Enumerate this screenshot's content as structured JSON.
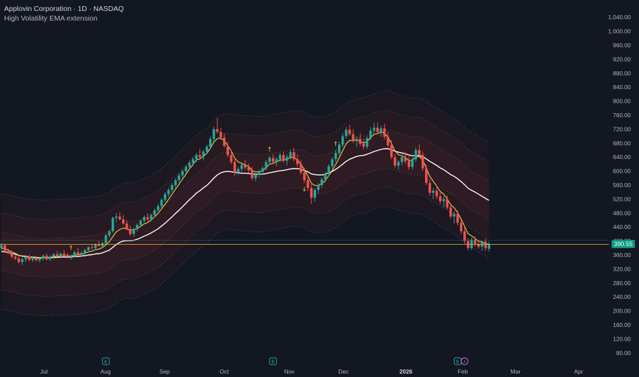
{
  "header": {
    "title": "Applovin Corporation · 1D · NASDAQ",
    "indicator": "High Volatility EMA extension"
  },
  "last_price": "390.55",
  "colors": {
    "background": "#131722",
    "up": "#26a69a",
    "down": "#ef5350",
    "fast_ema": "#f5d547",
    "slow_ema": "#ffffff",
    "band": "#8c2a2a",
    "price_line": "#f5b342",
    "earnings_badge": "#26a69a",
    "dividend_badge": "#c56bd8"
  },
  "chart_data": {
    "type": "candlestick",
    "x_axis_labels": [
      "Jul",
      "Aug",
      "Sep",
      "Oct",
      "Nov",
      "Dec",
      "2026",
      "Feb",
      "Mar",
      "Apr"
    ],
    "y_axis_labels": [
      "1,040.00",
      "1,000.00",
      "960.00",
      "920.00",
      "880.00",
      "840.00",
      "800.00",
      "760.00",
      "720.00",
      "680.00",
      "640.00",
      "600.00",
      "560.00",
      "520.00",
      "480.00",
      "440.00",
      "400.00",
      "360.00",
      "320.00",
      "280.00",
      "240.00",
      "200.00",
      "160.00",
      "120.00",
      "80.00"
    ],
    "ylim": [
      60,
      1060
    ],
    "grid": false,
    "candles": [
      {
        "o": 380,
        "h": 395,
        "l": 372,
        "c": 388
      },
      {
        "o": 388,
        "h": 392,
        "l": 368,
        "c": 372
      },
      {
        "o": 372,
        "h": 378,
        "l": 362,
        "c": 365
      },
      {
        "o": 365,
        "h": 370,
        "l": 350,
        "c": 355
      },
      {
        "o": 355,
        "h": 362,
        "l": 345,
        "c": 350
      },
      {
        "o": 350,
        "h": 358,
        "l": 336,
        "c": 340
      },
      {
        "o": 340,
        "h": 352,
        "l": 332,
        "c": 348
      },
      {
        "o": 348,
        "h": 360,
        "l": 340,
        "c": 355
      },
      {
        "o": 355,
        "h": 362,
        "l": 342,
        "c": 346
      },
      {
        "o": 346,
        "h": 356,
        "l": 340,
        "c": 352
      },
      {
        "o": 352,
        "h": 358,
        "l": 342,
        "c": 345
      },
      {
        "o": 345,
        "h": 355,
        "l": 338,
        "c": 350
      },
      {
        "o": 350,
        "h": 362,
        "l": 344,
        "c": 358
      },
      {
        "o": 358,
        "h": 364,
        "l": 344,
        "c": 348
      },
      {
        "o": 348,
        "h": 360,
        "l": 342,
        "c": 356
      },
      {
        "o": 356,
        "h": 366,
        "l": 348,
        "c": 362
      },
      {
        "o": 362,
        "h": 372,
        "l": 352,
        "c": 356
      },
      {
        "o": 356,
        "h": 368,
        "l": 350,
        "c": 364
      },
      {
        "o": 364,
        "h": 374,
        "l": 356,
        "c": 360
      },
      {
        "o": 360,
        "h": 366,
        "l": 350,
        "c": 355
      },
      {
        "o": 355,
        "h": 362,
        "l": 346,
        "c": 358
      },
      {
        "o": 358,
        "h": 372,
        "l": 352,
        "c": 368
      },
      {
        "o": 368,
        "h": 380,
        "l": 360,
        "c": 362
      },
      {
        "o": 362,
        "h": 372,
        "l": 355,
        "c": 366
      },
      {
        "o": 366,
        "h": 378,
        "l": 360,
        "c": 374
      },
      {
        "o": 374,
        "h": 386,
        "l": 368,
        "c": 382
      },
      {
        "o": 382,
        "h": 392,
        "l": 376,
        "c": 380
      },
      {
        "o": 380,
        "h": 394,
        "l": 374,
        "c": 390
      },
      {
        "o": 390,
        "h": 400,
        "l": 384,
        "c": 386
      },
      {
        "o": 386,
        "h": 398,
        "l": 380,
        "c": 394
      },
      {
        "o": 394,
        "h": 420,
        "l": 390,
        "c": 416
      },
      {
        "o": 416,
        "h": 432,
        "l": 410,
        "c": 428
      },
      {
        "o": 428,
        "h": 470,
        "l": 424,
        "c": 466
      },
      {
        "o": 466,
        "h": 480,
        "l": 452,
        "c": 470
      },
      {
        "o": 470,
        "h": 482,
        "l": 458,
        "c": 462
      },
      {
        "o": 462,
        "h": 474,
        "l": 446,
        "c": 450
      },
      {
        "o": 450,
        "h": 460,
        "l": 430,
        "c": 434
      },
      {
        "o": 434,
        "h": 444,
        "l": 414,
        "c": 420
      },
      {
        "o": 420,
        "h": 438,
        "l": 412,
        "c": 434
      },
      {
        "o": 434,
        "h": 450,
        "l": 428,
        "c": 446
      },
      {
        "o": 446,
        "h": 462,
        "l": 440,
        "c": 458
      },
      {
        "o": 458,
        "h": 474,
        "l": 452,
        "c": 468
      },
      {
        "o": 468,
        "h": 480,
        "l": 456,
        "c": 462
      },
      {
        "o": 462,
        "h": 478,
        "l": 456,
        "c": 474
      },
      {
        "o": 474,
        "h": 492,
        "l": 468,
        "c": 488
      },
      {
        "o": 488,
        "h": 506,
        "l": 482,
        "c": 500
      },
      {
        "o": 500,
        "h": 522,
        "l": 494,
        "c": 518
      },
      {
        "o": 518,
        "h": 540,
        "l": 512,
        "c": 534
      },
      {
        "o": 534,
        "h": 552,
        "l": 526,
        "c": 546
      },
      {
        "o": 546,
        "h": 566,
        "l": 540,
        "c": 560
      },
      {
        "o": 560,
        "h": 580,
        "l": 552,
        "c": 574
      },
      {
        "o": 574,
        "h": 594,
        "l": 566,
        "c": 588
      },
      {
        "o": 588,
        "h": 606,
        "l": 580,
        "c": 600
      },
      {
        "o": 600,
        "h": 618,
        "l": 592,
        "c": 612
      },
      {
        "o": 612,
        "h": 630,
        "l": 606,
        "c": 624
      },
      {
        "o": 624,
        "h": 640,
        "l": 614,
        "c": 634
      },
      {
        "o": 634,
        "h": 652,
        "l": 626,
        "c": 646
      },
      {
        "o": 646,
        "h": 664,
        "l": 636,
        "c": 640
      },
      {
        "o": 640,
        "h": 660,
        "l": 630,
        "c": 656
      },
      {
        "o": 656,
        "h": 676,
        "l": 648,
        "c": 670
      },
      {
        "o": 670,
        "h": 700,
        "l": 662,
        "c": 692
      },
      {
        "o": 692,
        "h": 728,
        "l": 684,
        "c": 720
      },
      {
        "o": 720,
        "h": 752,
        "l": 706,
        "c": 712
      },
      {
        "o": 712,
        "h": 724,
        "l": 690,
        "c": 696
      },
      {
        "o": 696,
        "h": 708,
        "l": 668,
        "c": 672
      },
      {
        "o": 672,
        "h": 684,
        "l": 640,
        "c": 646
      },
      {
        "o": 646,
        "h": 660,
        "l": 620,
        "c": 626
      },
      {
        "o": 626,
        "h": 640,
        "l": 586,
        "c": 596
      },
      {
        "o": 596,
        "h": 612,
        "l": 588,
        "c": 606
      },
      {
        "o": 606,
        "h": 626,
        "l": 598,
        "c": 618
      },
      {
        "o": 618,
        "h": 632,
        "l": 604,
        "c": 610
      },
      {
        "o": 610,
        "h": 622,
        "l": 596,
        "c": 602
      },
      {
        "o": 602,
        "h": 612,
        "l": 574,
        "c": 580
      },
      {
        "o": 580,
        "h": 596,
        "l": 570,
        "c": 590
      },
      {
        "o": 590,
        "h": 604,
        "l": 582,
        "c": 598
      },
      {
        "o": 598,
        "h": 614,
        "l": 590,
        "c": 608
      },
      {
        "o": 608,
        "h": 632,
        "l": 602,
        "c": 626
      },
      {
        "o": 626,
        "h": 644,
        "l": 618,
        "c": 638
      },
      {
        "o": 638,
        "h": 648,
        "l": 620,
        "c": 626
      },
      {
        "o": 626,
        "h": 640,
        "l": 614,
        "c": 634
      },
      {
        "o": 634,
        "h": 652,
        "l": 626,
        "c": 646
      },
      {
        "o": 646,
        "h": 656,
        "l": 624,
        "c": 630
      },
      {
        "o": 630,
        "h": 648,
        "l": 616,
        "c": 640
      },
      {
        "o": 640,
        "h": 662,
        "l": 632,
        "c": 654
      },
      {
        "o": 654,
        "h": 666,
        "l": 628,
        "c": 634
      },
      {
        "o": 634,
        "h": 648,
        "l": 612,
        "c": 620
      },
      {
        "o": 620,
        "h": 632,
        "l": 590,
        "c": 596
      },
      {
        "o": 596,
        "h": 610,
        "l": 566,
        "c": 574
      },
      {
        "o": 574,
        "h": 586,
        "l": 544,
        "c": 552
      },
      {
        "o": 552,
        "h": 566,
        "l": 506,
        "c": 524
      },
      {
        "o": 524,
        "h": 552,
        "l": 512,
        "c": 546
      },
      {
        "o": 546,
        "h": 566,
        "l": 536,
        "c": 560
      },
      {
        "o": 560,
        "h": 582,
        "l": 552,
        "c": 576
      },
      {
        "o": 576,
        "h": 598,
        "l": 568,
        "c": 592
      },
      {
        "o": 592,
        "h": 620,
        "l": 586,
        "c": 614
      },
      {
        "o": 614,
        "h": 640,
        "l": 606,
        "c": 634
      },
      {
        "o": 634,
        "h": 660,
        "l": 626,
        "c": 652
      },
      {
        "o": 652,
        "h": 684,
        "l": 644,
        "c": 676
      },
      {
        "o": 676,
        "h": 708,
        "l": 668,
        "c": 700
      },
      {
        "o": 700,
        "h": 726,
        "l": 692,
        "c": 718
      },
      {
        "o": 718,
        "h": 732,
        "l": 700,
        "c": 706
      },
      {
        "o": 706,
        "h": 720,
        "l": 680,
        "c": 686
      },
      {
        "o": 686,
        "h": 700,
        "l": 670,
        "c": 692
      },
      {
        "o": 692,
        "h": 708,
        "l": 672,
        "c": 678
      },
      {
        "o": 678,
        "h": 692,
        "l": 662,
        "c": 670
      },
      {
        "o": 670,
        "h": 700,
        "l": 664,
        "c": 694
      },
      {
        "o": 694,
        "h": 726,
        "l": 688,
        "c": 716
      },
      {
        "o": 716,
        "h": 738,
        "l": 706,
        "c": 724
      },
      {
        "o": 724,
        "h": 740,
        "l": 706,
        "c": 712
      },
      {
        "o": 712,
        "h": 730,
        "l": 698,
        "c": 722
      },
      {
        "o": 722,
        "h": 736,
        "l": 690,
        "c": 698
      },
      {
        "o": 698,
        "h": 712,
        "l": 668,
        "c": 674
      },
      {
        "o": 674,
        "h": 688,
        "l": 634,
        "c": 640
      },
      {
        "o": 640,
        "h": 650,
        "l": 610,
        "c": 616
      },
      {
        "o": 616,
        "h": 632,
        "l": 604,
        "c": 626
      },
      {
        "o": 626,
        "h": 648,
        "l": 616,
        "c": 640
      },
      {
        "o": 640,
        "h": 654,
        "l": 620,
        "c": 628
      },
      {
        "o": 628,
        "h": 642,
        "l": 604,
        "c": 612
      },
      {
        "o": 612,
        "h": 640,
        "l": 604,
        "c": 634
      },
      {
        "o": 634,
        "h": 668,
        "l": 626,
        "c": 660
      },
      {
        "o": 660,
        "h": 676,
        "l": 640,
        "c": 646
      },
      {
        "o": 646,
        "h": 656,
        "l": 600,
        "c": 608
      },
      {
        "o": 608,
        "h": 618,
        "l": 560,
        "c": 566
      },
      {
        "o": 566,
        "h": 576,
        "l": 530,
        "c": 538
      },
      {
        "o": 538,
        "h": 552,
        "l": 520,
        "c": 544
      },
      {
        "o": 544,
        "h": 558,
        "l": 520,
        "c": 528
      },
      {
        "o": 528,
        "h": 540,
        "l": 506,
        "c": 514
      },
      {
        "o": 514,
        "h": 528,
        "l": 496,
        "c": 520
      },
      {
        "o": 520,
        "h": 530,
        "l": 490,
        "c": 496
      },
      {
        "o": 496,
        "h": 506,
        "l": 464,
        "c": 470
      },
      {
        "o": 470,
        "h": 486,
        "l": 450,
        "c": 478
      },
      {
        "o": 478,
        "h": 488,
        "l": 444,
        "c": 452
      },
      {
        "o": 452,
        "h": 462,
        "l": 420,
        "c": 428
      },
      {
        "o": 428,
        "h": 440,
        "l": 392,
        "c": 400
      },
      {
        "o": 400,
        "h": 408,
        "l": 374,
        "c": 380
      },
      {
        "o": 380,
        "h": 410,
        "l": 374,
        "c": 404
      },
      {
        "o": 404,
        "h": 414,
        "l": 384,
        "c": 392
      },
      {
        "o": 392,
        "h": 404,
        "l": 378,
        "c": 384
      },
      {
        "o": 384,
        "h": 402,
        "l": 372,
        "c": 398
      },
      {
        "o": 398,
        "h": 408,
        "l": 372,
        "c": 380
      },
      {
        "o": 378,
        "h": 398,
        "l": 370,
        "c": 390.55
      }
    ],
    "fast_ema": [
      380,
      378,
      374,
      369,
      365,
      359,
      356,
      355,
      353,
      353,
      351,
      351,
      352,
      352,
      353,
      355,
      355,
      357,
      358,
      357,
      357,
      360,
      361,
      362,
      365,
      369,
      371,
      375,
      377,
      381,
      389,
      398,
      413,
      426,
      433,
      437,
      435,
      431,
      432,
      436,
      442,
      449,
      453,
      460,
      469,
      479,
      492,
      505,
      519,
      534,
      548,
      562,
      577,
      591,
      606,
      619,
      632,
      635,
      642,
      651,
      665,
      683,
      693,
      694,
      687,
      673,
      658,
      637,
      626,
      622,
      618,
      613,
      602,
      598,
      598,
      601,
      610,
      620,
      622,
      626,
      632,
      631,
      634,
      640,
      638,
      632,
      620,
      604,
      586,
      565,
      559,
      559,
      564,
      573,
      587,
      602,
      619,
      638,
      658,
      678,
      688,
      687,
      689,
      685,
      680,
      685,
      696,
      705,
      707,
      712,
      708,
      697,
      679,
      658,
      647,
      644,
      639,
      630,
      631,
      641,
      642,
      631,
      609,
      585,
      571,
      557,
      542,
      534,
      521,
      504,
      495,
      481,
      463,
      442,
      421,
      415,
      407,
      399,
      398,
      392,
      391
    ],
    "slow_ema": [
      370,
      369,
      367,
      365,
      362,
      359,
      357,
      356,
      354,
      354,
      353,
      352,
      352,
      352,
      352,
      353,
      353,
      354,
      354,
      354,
      354,
      356,
      356,
      357,
      358,
      360,
      361,
      363,
      364,
      366,
      370,
      374,
      382,
      390,
      396,
      400,
      401,
      401,
      402,
      405,
      409,
      414,
      418,
      423,
      429,
      435,
      443,
      451,
      460,
      469,
      479,
      488,
      498,
      508,
      518,
      527,
      537,
      544,
      552,
      559,
      569,
      580,
      589,
      595,
      598,
      599,
      598,
      596,
      595,
      594,
      594,
      593,
      592,
      591,
      591,
      591,
      593,
      595,
      597,
      599,
      601,
      602,
      604,
      606,
      607,
      607,
      605,
      602,
      598,
      592,
      590,
      589,
      589,
      591,
      595,
      599,
      605,
      612,
      620,
      628,
      634,
      638,
      642,
      644,
      645,
      648,
      652,
      656,
      659,
      662,
      664,
      664,
      661,
      657,
      654,
      652,
      649,
      646,
      644,
      644,
      644,
      641,
      635,
      628,
      622,
      616,
      609,
      604,
      597,
      590,
      585,
      578,
      570,
      561,
      551,
      545,
      540,
      534,
      528,
      522,
      516
    ],
    "band_offsets": [
      55,
      110,
      165
    ],
    "signal_arrows": [
      {
        "index": 20,
        "direction": "up"
      },
      {
        "index": 77,
        "direction": "up"
      },
      {
        "index": 87,
        "direction": "down"
      },
      {
        "index": 96,
        "direction": "up"
      }
    ],
    "event_badges": [
      {
        "index": 30,
        "label": "E"
      },
      {
        "index": 78,
        "label": "E"
      },
      {
        "index": 131,
        "label": "E"
      },
      {
        "index": 133,
        "label": "⚡"
      }
    ]
  }
}
